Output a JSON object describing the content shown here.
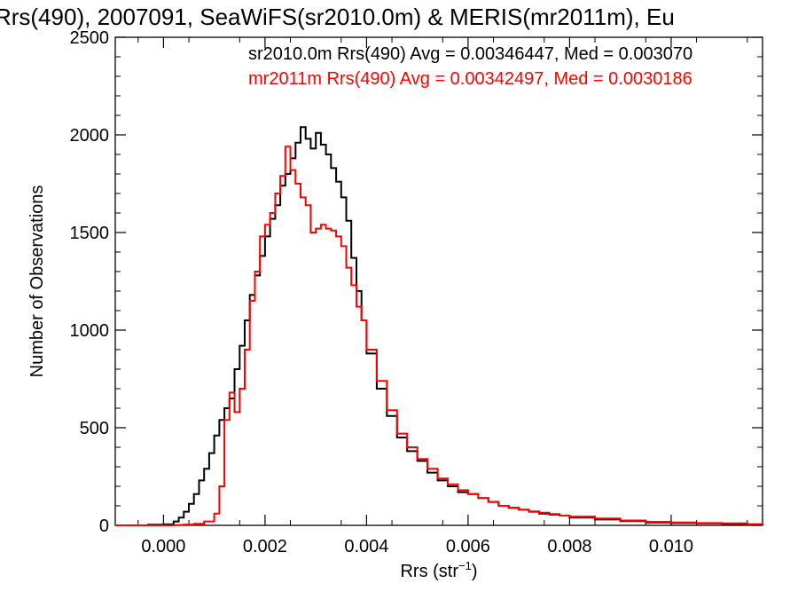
{
  "chart_data": {
    "type": "line",
    "title": "Rrs(490), 2007091, SeaWiFS(sr2010.0m) & MERIS(mr2011m), Eu",
    "xlabel": "Rrs (str",
    "xlabel_sup": "−1",
    "xlabel_close": ")",
    "ylabel": "Number of Observations",
    "xlim": [
      -0.00095,
      0.0118
    ],
    "ylim": [
      0,
      2500
    ],
    "xticks": [
      {
        "value": 0.0,
        "label": "0.000"
      },
      {
        "value": 0.002,
        "label": "0.002"
      },
      {
        "value": 0.004,
        "label": "0.004"
      },
      {
        "value": 0.006,
        "label": "0.006"
      },
      {
        "value": 0.008,
        "label": "0.008"
      },
      {
        "value": 0.01,
        "label": "0.010"
      }
    ],
    "yticks": [
      {
        "value": 0,
        "label": "0"
      },
      {
        "value": 500,
        "label": "500"
      },
      {
        "value": 1000,
        "label": "1000"
      },
      {
        "value": 1500,
        "label": "1500"
      },
      {
        "value": 2000,
        "label": "2000"
      },
      {
        "value": 2500,
        "label": "2500"
      }
    ],
    "xminor": [
      0.0005,
      0.0015,
      0.0025,
      0.0035,
      0.0045,
      0.0055,
      0.0065,
      0.0075,
      0.0085,
      0.0095,
      0.0105,
      0.0115,
      -0.0005
    ],
    "yminor": [
      100,
      200,
      300,
      400,
      600,
      700,
      800,
      900,
      1100,
      1200,
      1300,
      1400,
      1600,
      1700,
      1800,
      1900,
      2100,
      2200,
      2300,
      2400
    ],
    "grid": false,
    "legend": [
      {
        "text": "sr2010.0m Rrs(490) Avg = 0.00346447, Med = 0.003070",
        "color": "#000000"
      },
      {
        "text": "mr2011m Rrs(490) Avg = 0.00342497, Med = 0.0030186",
        "color": "#ff0000"
      }
    ],
    "series": [
      {
        "color": "#000000",
        "x": [
          -0.00095,
          -0.0006,
          -0.0003,
          0.0,
          0.0002,
          0.0003,
          0.0004,
          0.0005,
          0.0006,
          0.0007,
          0.0008,
          0.0009,
          0.001,
          0.0011,
          0.0012,
          0.0013,
          0.0014,
          0.0015,
          0.0016,
          0.0017,
          0.0018,
          0.0019,
          0.002,
          0.0021,
          0.0022,
          0.0023,
          0.0024,
          0.0025,
          0.0026,
          0.0027,
          0.0028,
          0.0029,
          0.003,
          0.0031,
          0.0032,
          0.0033,
          0.0034,
          0.0035,
          0.0036,
          0.0037,
          0.0038,
          0.0039,
          0.004,
          0.0042,
          0.0044,
          0.0046,
          0.0048,
          0.005,
          0.0052,
          0.0054,
          0.0056,
          0.0058,
          0.006,
          0.0062,
          0.0064,
          0.0066,
          0.0068,
          0.007,
          0.0072,
          0.0074,
          0.0076,
          0.0078,
          0.008,
          0.0085,
          0.009,
          0.0095,
          0.01,
          0.0105,
          0.011,
          0.0115,
          0.0118
        ],
        "values": [
          0,
          0,
          3,
          5,
          20,
          40,
          70,
          110,
          160,
          230,
          290,
          370,
          460,
          540,
          600,
          650,
          800,
          920,
          1050,
          1180,
          1280,
          1380,
          1480,
          1570,
          1640,
          1740,
          1800,
          1880,
          1960,
          2040,
          1980,
          1930,
          2010,
          1950,
          1900,
          1830,
          1760,
          1680,
          1560,
          1370,
          1200,
          1050,
          880,
          700,
          560,
          450,
          380,
          330,
          270,
          230,
          200,
          170,
          160,
          140,
          120,
          100,
          90,
          80,
          70,
          60,
          55,
          50,
          40,
          30,
          22,
          15,
          12,
          10,
          8,
          5,
          3
        ]
      },
      {
        "color": "#ff0000",
        "x": [
          -0.00095,
          -0.0006,
          -0.0003,
          0.0,
          0.0002,
          0.0004,
          0.0006,
          0.0008,
          0.001,
          0.0011,
          0.0012,
          0.0013,
          0.0014,
          0.0015,
          0.0016,
          0.0017,
          0.0018,
          0.0019,
          0.002,
          0.0021,
          0.0022,
          0.0023,
          0.0024,
          0.0025,
          0.0026,
          0.0027,
          0.0028,
          0.0029,
          0.003,
          0.0031,
          0.0032,
          0.0033,
          0.0034,
          0.0035,
          0.0036,
          0.0037,
          0.0038,
          0.0039,
          0.004,
          0.0042,
          0.0044,
          0.0046,
          0.0048,
          0.005,
          0.0052,
          0.0054,
          0.0056,
          0.0058,
          0.006,
          0.0062,
          0.0064,
          0.0066,
          0.0068,
          0.007,
          0.0072,
          0.0074,
          0.0076,
          0.0078,
          0.008,
          0.0085,
          0.009,
          0.0095,
          0.01,
          0.0105,
          0.011,
          0.0115,
          0.0118
        ],
        "values": [
          0,
          0,
          0,
          0,
          2,
          4,
          8,
          20,
          60,
          200,
          540,
          680,
          580,
          700,
          900,
          1150,
          1300,
          1480,
          1540,
          1600,
          1700,
          1790,
          1940,
          1820,
          1750,
          1680,
          1640,
          1500,
          1520,
          1540,
          1520,
          1510,
          1480,
          1430,
          1320,
          1230,
          1120,
          1050,
          900,
          740,
          590,
          470,
          400,
          340,
          290,
          240,
          210,
          180,
          160,
          140,
          120,
          100,
          90,
          80,
          72,
          65,
          58,
          50,
          45,
          35,
          25,
          18,
          15,
          12,
          10,
          6,
          4
        ]
      }
    ]
  }
}
